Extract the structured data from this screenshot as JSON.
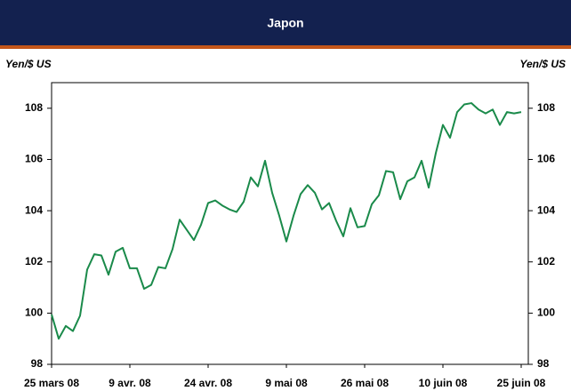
{
  "chart_data": {
    "type": "line",
    "title": "Japon",
    "ylabel": "Yen/$ US",
    "y2label": "Yen/$ US",
    "categories": [
      "25 mars 08",
      null,
      null,
      null,
      null,
      null,
      null,
      null,
      null,
      null,
      null,
      "9 avr. 08",
      null,
      null,
      null,
      null,
      null,
      null,
      null,
      null,
      null,
      null,
      "24 avr. 08",
      null,
      null,
      null,
      null,
      null,
      null,
      null,
      null,
      null,
      null,
      "9 mai 08",
      null,
      null,
      null,
      null,
      null,
      null,
      null,
      null,
      null,
      null,
      "26 mai 08",
      null,
      null,
      null,
      null,
      null,
      null,
      null,
      null,
      null,
      null,
      "10 juin 08",
      null,
      null,
      null,
      null,
      null,
      null,
      null,
      null,
      null,
      null,
      "25 juin 08"
    ],
    "series": [
      {
        "name": "Yen/$ US",
        "color": "#1a8a4a",
        "values": [
          99.95,
          99.0,
          99.5,
          99.3,
          99.9,
          101.7,
          102.3,
          102.25,
          101.5,
          102.4,
          102.55,
          101.75,
          101.75,
          100.95,
          101.1,
          101.8,
          101.75,
          102.5,
          103.65,
          103.25,
          102.85,
          103.45,
          104.3,
          104.4,
          104.2,
          104.05,
          103.95,
          104.35,
          105.3,
          104.95,
          105.95,
          104.7,
          103.8,
          102.8,
          103.8,
          104.65,
          105.0,
          104.7,
          104.05,
          104.3,
          103.6,
          103.0,
          104.1,
          103.35,
          103.4,
          104.25,
          104.6,
          105.55,
          105.5,
          104.45,
          105.15,
          105.3,
          105.95,
          104.9,
          106.25,
          107.35,
          106.85,
          107.85,
          108.15,
          108.2,
          107.95,
          107.8,
          107.95,
          107.35,
          107.85,
          107.8,
          107.85
        ]
      }
    ],
    "ylim": [
      98,
      109
    ],
    "yticks": [
      98,
      100,
      102,
      104,
      106,
      108
    ],
    "y2lim": [
      98,
      109
    ],
    "y2ticks": [
      98,
      100,
      102,
      104,
      106,
      108
    ]
  }
}
